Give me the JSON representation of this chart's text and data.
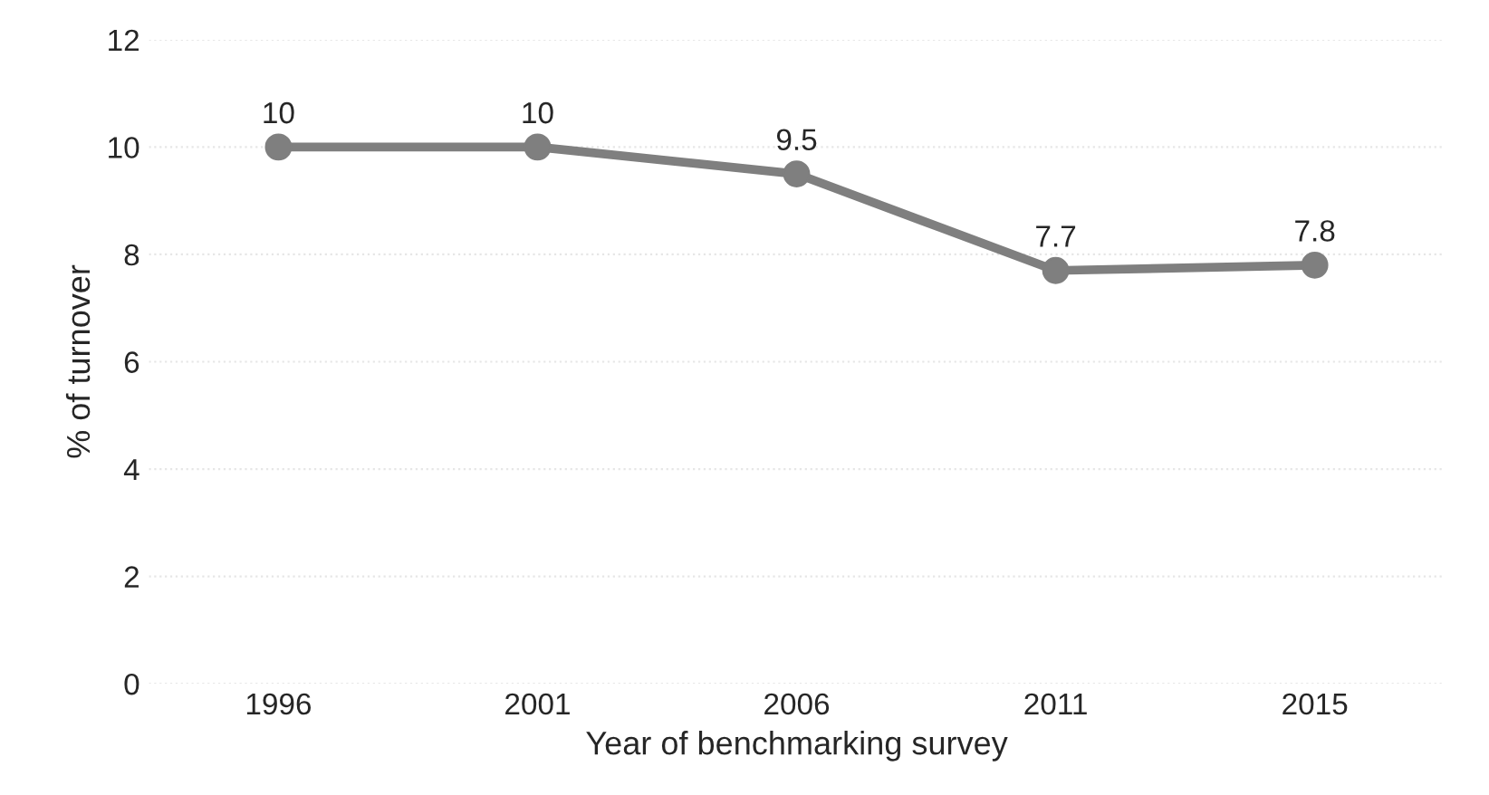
{
  "chart_data": {
    "type": "line",
    "xlabel": "Year of benchmarking survey",
    "ylabel": "% of turnover",
    "categories": [
      "1996",
      "2001",
      "2006",
      "2011",
      "2015"
    ],
    "series": [
      {
        "color": "#7f7f7f",
        "values": [
          10,
          10,
          9.5,
          7.7,
          7.8
        ]
      }
    ],
    "ylim": [
      0,
      12
    ],
    "yticks": [
      0,
      2,
      4,
      6,
      8,
      10,
      12
    ],
    "grid": "y",
    "marker": "circle",
    "line_style": "solid",
    "data_labels": true
  }
}
